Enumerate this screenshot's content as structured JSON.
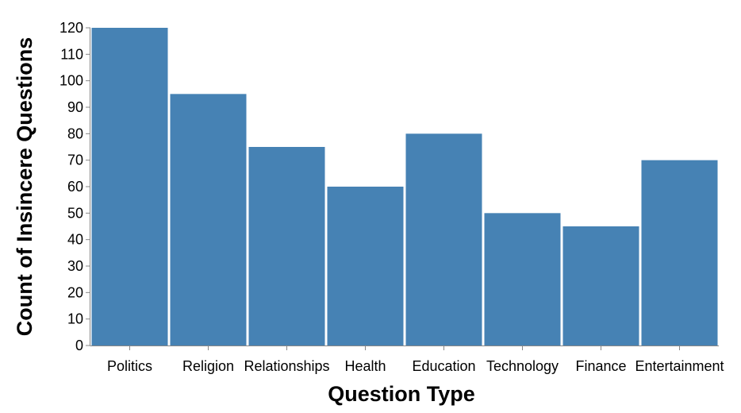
{
  "chart_data": {
    "type": "bar",
    "categories": [
      "Politics",
      "Religion",
      "Relationships",
      "Health",
      "Education",
      "Technology",
      "Finance",
      "Entertainment"
    ],
    "values": [
      120,
      95,
      75,
      60,
      80,
      50,
      45,
      70
    ],
    "xlabel": "Question Type",
    "ylabel": "Count of Insincere Questions",
    "ylim": [
      0,
      120
    ],
    "yticks": [
      0,
      10,
      20,
      30,
      40,
      50,
      60,
      70,
      80,
      90,
      100,
      110,
      120
    ],
    "grid": false,
    "colors": {
      "bar": "#4682b4",
      "axis": "#888888",
      "text": "#000000"
    }
  }
}
